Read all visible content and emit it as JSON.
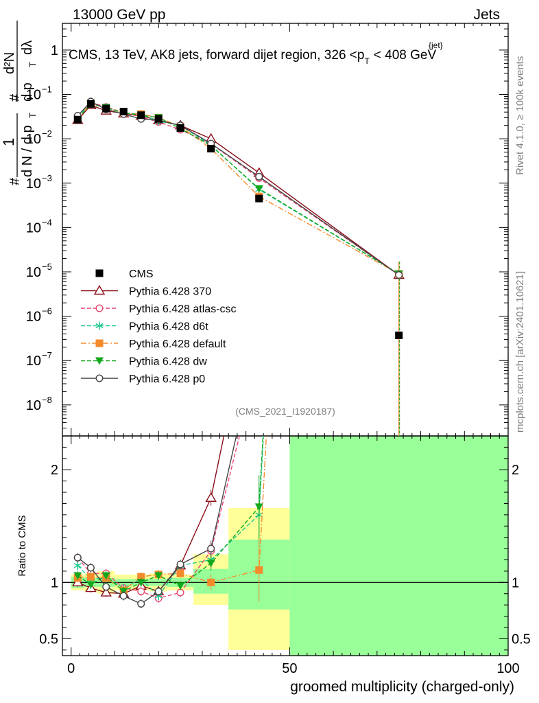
{
  "header": {
    "left": "13000 GeV pp",
    "right": "Jets"
  },
  "plot_title": {
    "prefix": "CMS, 13 TeV, AK8 jets, forward dijet region, 326 <p",
    "sub": "T",
    "sup": "{jet}",
    "suffix": "< 408 GeV"
  },
  "side_labels": {
    "rivet": "Rivet 4.1.0, ≥ 100k events",
    "mcplots": "mcplots.cern.ch [arXiv:2401.10621]"
  },
  "analysis_id": "(CMS_2021_I1920187)",
  "y_label_main": {
    "num1": "1",
    "num1_den": "d N / d p",
    "num1_den_sub": "T",
    "num2": "d²N",
    "num2_den": "d p",
    "num2_den_sub": "T",
    "num2_den_tail": "dλ",
    "hash": "#"
  },
  "y_label_ratio": "Ratio to CMS",
  "x_label": "groomed multiplicity (charged-only)",
  "colors": {
    "cms": "#000000",
    "p370": "#8b0d1a",
    "atlas": "#e8446e",
    "d6t": "#1ec98f",
    "default": "#f58a2c",
    "dw": "#14a81c",
    "p0": "#444444",
    "band_yellow": "#ffff99",
    "band_green": "#99ff99"
  },
  "chart_data": {
    "type": "line",
    "x_axis": {
      "range": [
        -2,
        100
      ],
      "ticks": [
        0,
        50,
        100
      ],
      "tick_labels": [
        "0",
        "50",
        "100"
      ],
      "scale": "linear"
    },
    "main_y_axis": {
      "scale": "log",
      "range": [
        2e-09,
        4
      ],
      "ticks": [
        1e-08,
        1e-07,
        1e-06,
        1e-05,
        0.0001,
        0.001,
        0.01,
        0.1,
        1
      ],
      "tick_labels": [
        {
          "base": "10",
          "exp": "−8"
        },
        {
          "base": "10",
          "exp": "−7"
        },
        {
          "base": "10",
          "exp": "−6"
        },
        {
          "base": "10",
          "exp": "−5"
        },
        {
          "base": "10",
          "exp": "−4"
        },
        {
          "base": "10",
          "exp": "−3"
        },
        {
          "base": "10",
          "exp": "−2"
        },
        {
          "base": "10",
          "exp": "−1"
        },
        {
          "base": "1",
          "exp": ""
        }
      ]
    },
    "ratio_y_axis": {
      "scale": "linear",
      "range": [
        0.35,
        2.3
      ],
      "ticks": [
        0.5,
        1,
        2
      ],
      "tick_labels": [
        "0.5",
        "1",
        "2"
      ]
    },
    "bins": [
      {
        "lo": 0,
        "hi": 3
      },
      {
        "lo": 3,
        "hi": 6
      },
      {
        "lo": 6,
        "hi": 10
      },
      {
        "lo": 10,
        "hi": 14
      },
      {
        "lo": 14,
        "hi": 18
      },
      {
        "lo": 18,
        "hi": 22
      },
      {
        "lo": 22,
        "hi": 28
      },
      {
        "lo": 28,
        "hi": 36
      },
      {
        "lo": 36,
        "hi": 50
      },
      {
        "lo": 50,
        "hi": 100
      }
    ],
    "x": [
      1.5,
      4.5,
      8,
      12,
      16,
      20,
      25,
      32,
      43,
      75
    ],
    "cms": [
      0.027,
      0.061,
      0.048,
      0.041,
      0.034,
      0.028,
      0.0175,
      0.006,
      0.00045,
      3.7e-07
    ],
    "ratio_bands": {
      "green": [
        [
          0.95,
          1.05
        ],
        [
          0.96,
          1.04
        ],
        [
          0.96,
          1.04
        ],
        [
          0.97,
          1.03
        ],
        [
          0.97,
          1.03
        ],
        [
          0.97,
          1.03
        ],
        [
          0.96,
          1.04
        ],
        [
          0.9,
          1.12
        ],
        [
          0.76,
          1.38
        ],
        [
          0.3,
          2.5
        ]
      ],
      "yellow": [
        [
          0.93,
          1.07
        ],
        [
          0.92,
          1.08
        ],
        [
          0.9,
          1.1
        ],
        [
          0.93,
          1.07
        ],
        [
          0.93,
          1.07
        ],
        [
          0.92,
          1.08
        ],
        [
          0.93,
          1.07
        ],
        [
          0.8,
          1.25
        ],
        [
          0.4,
          1.66
        ],
        [
          0.3,
          2.5
        ]
      ]
    },
    "series": [
      {
        "name": "CMS",
        "key": "cms",
        "marker": "filled-square",
        "dash": "none",
        "values": [
          0.027,
          0.061,
          0.048,
          0.041,
          0.034,
          0.028,
          0.0175,
          0.006,
          0.00045,
          3.7e-07
        ],
        "ratio": [
          1,
          1,
          1,
          1,
          1,
          1,
          1,
          1,
          1,
          1
        ]
      },
      {
        "name": "Pythia 6.428 370",
        "key": "p370",
        "marker": "open-triangle",
        "dash": "none",
        "values": [
          0.0265,
          0.057,
          0.043,
          0.037,
          0.033,
          0.026,
          0.02,
          0.01,
          0.0017,
          8.5e-06
        ],
        "ratio": [
          1.0,
          0.95,
          0.91,
          0.9,
          0.97,
          0.92,
          1.15,
          1.75,
          3.8,
          23
        ]
      },
      {
        "name": "Pythia 6.428 atlas-csc",
        "key": "atlas",
        "marker": "open-circle",
        "dash": "6,3",
        "values": [
          0.033,
          0.066,
          0.052,
          0.039,
          0.031,
          0.024,
          0.016,
          0.0077,
          0.0013,
          8.5e-06
        ],
        "ratio": [
          1.22,
          1.08,
          1.08,
          0.95,
          0.92,
          0.86,
          0.91,
          1.28,
          3.0,
          23
        ]
      },
      {
        "name": "Pythia 6.428 d6t",
        "key": "d6t",
        "marker": "asterisk",
        "dash": "6,3",
        "values": [
          0.031,
          0.063,
          0.05,
          0.039,
          0.035,
          0.025,
          0.02,
          0.0072,
          0.00072,
          9e-06
        ],
        "ratio": [
          1.15,
          1.03,
          1.04,
          0.95,
          1.03,
          0.88,
          1.15,
          1.2,
          1.6,
          24
        ]
      },
      {
        "name": "Pythia 6.428 default",
        "key": "default",
        "marker": "filled-square",
        "dash": "8,3,2,3",
        "values": [
          0.028,
          0.064,
          0.05,
          0.038,
          0.036,
          0.03,
          0.019,
          0.006,
          0.0005,
          9e-06
        ],
        "ratio": [
          1.04,
          1.05,
          1.04,
          0.93,
          1.05,
          1.07,
          1.08,
          1.0,
          1.11,
          24
        ]
      },
      {
        "name": "Pythia 6.428 dw",
        "key": "dw",
        "marker": "filled-triangle-down",
        "dash": "6,3",
        "values": [
          0.029,
          0.06,
          0.051,
          0.038,
          0.034,
          0.03,
          0.017,
          0.007,
          0.00075,
          9e-06
        ],
        "ratio": [
          1.06,
          0.98,
          1.06,
          0.92,
          1.0,
          1.06,
          0.97,
          1.17,
          1.67,
          24
        ]
      },
      {
        "name": "Pythia 6.428 p0",
        "key": "p0",
        "marker": "open-circle",
        "dash": "none",
        "values": [
          0.033,
          0.069,
          0.046,
          0.036,
          0.028,
          0.026,
          0.02,
          0.0078,
          0.0014,
          8.5e-06
        ],
        "ratio": [
          1.22,
          1.13,
          0.96,
          0.88,
          0.81,
          0.92,
          1.16,
          1.3,
          3.2,
          23
        ]
      }
    ],
    "legend_position": "middle-left"
  }
}
